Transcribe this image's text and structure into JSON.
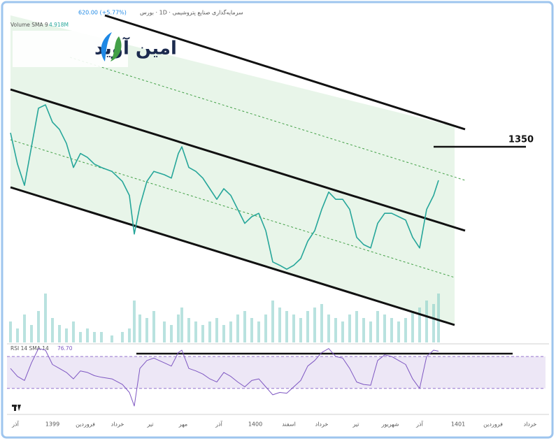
{
  "chart_data": [
    {
      "type": "line",
      "title": "سرمایه‌گذاری صنایع پتروشیمی · 1D · بورس",
      "subtitle": "620.00 (+5.77%)",
      "annotations": [
        "امین آوید"
      ],
      "x": [
        0.5,
        1.5,
        2.5,
        3.5,
        4.5,
        5.5,
        6.5,
        7.5,
        8.5,
        9.5,
        10.5,
        11.5,
        12.5,
        13.5,
        15,
        16.5,
        17.5,
        18.2,
        19,
        20,
        21,
        22.5,
        23.5,
        24.5,
        25,
        26,
        27,
        28,
        29,
        30,
        31,
        32,
        33,
        34,
        35,
        36,
        37,
        38,
        39,
        40,
        41,
        42,
        43,
        44,
        45,
        46,
        47,
        48,
        49,
        50,
        51,
        52,
        53,
        54,
        55,
        56,
        57,
        58,
        59,
        60,
        61,
        61.7
      ],
      "xlim": [
        0,
        77
      ],
      "xticks": [
        {
          "value": 1.2,
          "label": "آذر"
        },
        {
          "value": 6.5,
          "label": "1399"
        },
        {
          "value": 11.2,
          "label": "فروردین"
        },
        {
          "value": 15.8,
          "label": "خرداد"
        },
        {
          "value": 20.5,
          "label": "تیر"
        },
        {
          "value": 25.2,
          "label": "مهر"
        },
        {
          "value": 30.3,
          "label": "آذر"
        },
        {
          "value": 35.5,
          "label": "1400"
        },
        {
          "value": 40.3,
          "label": "اسفند"
        },
        {
          "value": 45,
          "label": "خرداد"
        },
        {
          "value": 49.9,
          "label": "تیر"
        },
        {
          "value": 54.8,
          "label": "شهریور"
        },
        {
          "value": 59,
          "label": "آذر"
        },
        {
          "value": 64.5,
          "label": "1401"
        },
        {
          "value": 69.5,
          "label": "فروردین"
        },
        {
          "value": 74.8,
          "label": "خرداد"
        }
      ],
      "ylim": [
        1000,
        1600
      ],
      "y2lim": [
        0,
        40
      ],
      "level": 1350,
      "legend_value": {
        "value": 4.918,
        "label": "4.918M"
      },
      "series": [
        {
          "color": "#26a69a",
          "values": [
            1375,
            1319,
            1281,
            1350,
            1419,
            1425,
            1394,
            1381,
            1356,
            1313,
            1338,
            1331,
            1319,
            1313,
            1306,
            1288,
            1263,
            1194,
            1244,
            1288,
            1306,
            1300,
            1294,
            1338,
            1350,
            1313,
            1306,
            1294,
            1275,
            1256,
            1275,
            1263,
            1238,
            1213,
            1225,
            1231,
            1200,
            1144,
            1138,
            1131,
            1138,
            1150,
            1181,
            1200,
            1238,
            1269,
            1256,
            1256,
            1238,
            1188,
            1175,
            1169,
            1213,
            1231,
            1231,
            1225,
            1219,
            1188,
            1169,
            1238,
            1263,
            1290
          ]
        },
        {
          "name": "Volume SMA 9",
          "color": "#80cbc4",
          "axis": "y2",
          "values": [
            6,
            4,
            8,
            5,
            9,
            14,
            7,
            5,
            4,
            6,
            3,
            4,
            3,
            3,
            2,
            3,
            4,
            12,
            8,
            7,
            9,
            6,
            5,
            8,
            10,
            7,
            6,
            5,
            6,
            7,
            5,
            6,
            8,
            9,
            7,
            6,
            8,
            12,
            10,
            9,
            8,
            7,
            9,
            10,
            11,
            8,
            7,
            6,
            8,
            9,
            7,
            6,
            9,
            8,
            7,
            6,
            7,
            9,
            10,
            12,
            11,
            14
          ]
        }
      ]
    },
    {
      "type": "line",
      "title": "RSI 14 SMA 14",
      "legend_value": {
        "value": 76.7,
        "label": "76.70"
      },
      "x": [
        0.5,
        1.5,
        2.5,
        3.5,
        4.5,
        5.5,
        6.5,
        7.5,
        8.5,
        9.5,
        10.5,
        11.5,
        12.5,
        13.5,
        15,
        16.5,
        17.5,
        18.2,
        19,
        20,
        21,
        22.5,
        23.5,
        24.5,
        25,
        26,
        27,
        28,
        29,
        30,
        31,
        32,
        33,
        34,
        35,
        36,
        37,
        38,
        39,
        40,
        41,
        42,
        43,
        44,
        45,
        46,
        47,
        48,
        49,
        50,
        51,
        52,
        53,
        54,
        55,
        56,
        57,
        58,
        59,
        60,
        61,
        61.7
      ],
      "xlim": [
        0,
        77
      ],
      "ylim": [
        0,
        85
      ],
      "bands": [
        30,
        70
      ],
      "series": [
        {
          "color": "#7e57c2",
          "values": [
            55,
            45,
            40,
            62,
            80,
            78,
            60,
            55,
            50,
            42,
            52,
            50,
            46,
            44,
            42,
            35,
            25,
            8,
            55,
            65,
            68,
            62,
            58,
            75,
            78,
            55,
            52,
            48,
            42,
            38,
            50,
            45,
            38,
            32,
            40,
            42,
            32,
            22,
            25,
            24,
            32,
            40,
            58,
            65,
            75,
            80,
            70,
            68,
            55,
            38,
            35,
            34,
            65,
            72,
            70,
            65,
            60,
            42,
            30,
            70,
            78,
            76.7
          ]
        }
      ]
    }
  ]
}
